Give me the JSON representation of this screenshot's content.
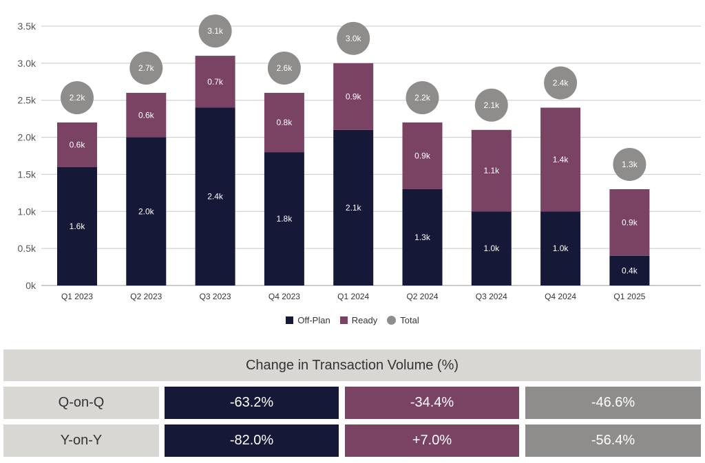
{
  "chart_data": {
    "type": "bar",
    "stacked": true,
    "categories": [
      "Q1 2023",
      "Q2 2023",
      "Q3 2023",
      "Q4 2023",
      "Q1 2024",
      "Q2 2024",
      "Q3 2024",
      "Q4 2024",
      "Q1 2025"
    ],
    "series": [
      {
        "name": "Off-Plan",
        "color": "#151836",
        "values": [
          1.6,
          2.0,
          2.4,
          1.8,
          2.1,
          1.3,
          1.0,
          1.0,
          0.4
        ],
        "labels": [
          "1.6k",
          "2.0k",
          "2.4k",
          "1.8k",
          "2.1k",
          "1.3k",
          "1.0k",
          "1.0k",
          "0.4k"
        ]
      },
      {
        "name": "Ready",
        "color": "#7a4364",
        "values": [
          0.6,
          0.6,
          0.7,
          0.8,
          0.9,
          0.9,
          1.1,
          1.4,
          0.9
        ],
        "labels": [
          "0.6k",
          "0.6k",
          "0.7k",
          "0.8k",
          "0.9k",
          "0.9k",
          "1.1k",
          "1.4k",
          "0.9k"
        ]
      }
    ],
    "totals": {
      "name": "Total",
      "color": "#8e8d8c",
      "labels": [
        "2.2k",
        "2.7k",
        "3.1k",
        "2.6k",
        "3.0k",
        "2.2k",
        "2.1k",
        "2.4k",
        "1.3k"
      ]
    },
    "yticks": [
      "0k",
      "0.5k",
      "1.0k",
      "1.5k",
      "2.0k",
      "2.5k",
      "3.0k",
      "3.5k"
    ],
    "ylim": [
      0,
      3.5
    ],
    "grid": true,
    "legend": "bottom"
  },
  "table": {
    "title": "Change in Transaction Volume (%)",
    "rows": [
      {
        "label": "Q-on-Q",
        "off_plan": "-63.2%",
        "ready": "-34.4%",
        "total": "-46.6%"
      },
      {
        "label": "Y-on-Y",
        "off_plan": "-82.0%",
        "ready": "+7.0%",
        "total": "-56.4%"
      }
    ]
  }
}
